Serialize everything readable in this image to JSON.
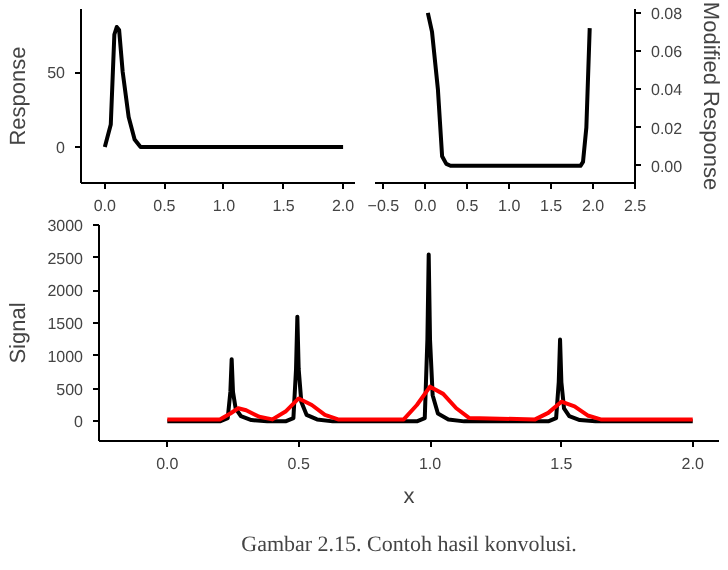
{
  "chart_data": [
    {
      "type": "line",
      "ylabel": "Response",
      "xlim": [
        -0.2,
        2.1
      ],
      "ylim": [
        -24,
        92
      ],
      "xticks": [
        {
          "value": 0,
          "label": "0.0"
        },
        0.5,
        {
          "value": 1,
          "label": "1.0"
        },
        1.5,
        {
          "value": 2,
          "label": "2.0"
        }
      ],
      "yticks": [
        0,
        50
      ],
      "series": [
        {
          "color": "#000000",
          "x": [
            0,
            0.05,
            0.08,
            0.1,
            0.12,
            0.15,
            0.2,
            0.25,
            0.3,
            2.0
          ],
          "values": [
            0,
            15,
            75,
            80,
            78,
            50,
            20,
            5,
            0,
            0
          ]
        }
      ]
    },
    {
      "type": "line",
      "y2label": "Modified Response",
      "xlim": [
        -0.6,
        2.5
      ],
      "y2lim": [
        -0.009,
        0.082
      ],
      "xticks": [
        -0.5,
        {
          "value": 0,
          "label": "0.0"
        },
        0.5,
        {
          "value": 1,
          "label": "1.0"
        },
        1.5,
        {
          "value": 2,
          "label": "2.0"
        },
        2.5
      ],
      "y2ticks": [
        {
          "value": 0,
          "label": "0.00"
        },
        0.02,
        0.04,
        0.06,
        0.08
      ],
      "series": [
        {
          "color": "#000000",
          "axis": "y2",
          "x": [
            0.03,
            0.08,
            0.15,
            0.2,
            0.25,
            0.3,
            1.85,
            1.88,
            1.92,
            1.96
          ],
          "values": [
            0.08,
            0.07,
            0.04,
            0.005,
            0.001,
            0,
            0,
            0.002,
            0.02,
            0.072
          ]
        }
      ]
    },
    {
      "type": "line",
      "xlabel": "x",
      "ylabel": "Signal",
      "xlim": [
        -0.26,
        2.1
      ],
      "ylim": [
        -300,
        3000
      ],
      "xticks": [
        {
          "value": 0,
          "label": "0.0"
        },
        0.5,
        {
          "value": 1,
          "label": "1.0"
        },
        1.5,
        {
          "value": 2,
          "label": "2.0"
        }
      ],
      "yticks": [
        0,
        500,
        1000,
        1500,
        2000,
        2500,
        3000
      ],
      "annotations": [
        "Gambar 2.15. Contoh hasil konvolusi."
      ],
      "series": [
        {
          "color": "#000000",
          "x": [
            0,
            0.2,
            0.23,
            0.24,
            0.245,
            0.25,
            0.26,
            0.28,
            0.32,
            0.38,
            0.45,
            0.48,
            0.49,
            0.495,
            0.5,
            0.51,
            0.53,
            0.57,
            0.63,
            0.7,
            0.95,
            0.98,
            0.99,
            0.995,
            1.0,
            1.01,
            1.03,
            1.07,
            1.13,
            1.2,
            1.45,
            1.48,
            1.49,
            1.495,
            1.5,
            1.51,
            1.53,
            1.57,
            1.63,
            1.7,
            2.0
          ],
          "values": [
            0,
            0,
            50,
            450,
            950,
            450,
            200,
            80,
            20,
            0,
            0,
            50,
            800,
            1600,
            800,
            300,
            100,
            30,
            0,
            0,
            0,
            50,
            1250,
            2550,
            1250,
            400,
            120,
            30,
            0,
            0,
            0,
            50,
            600,
            1250,
            600,
            200,
            80,
            20,
            0,
            0,
            0
          ]
        },
        {
          "color": "#ff0000",
          "x": [
            0,
            0.2,
            0.24,
            0.27,
            0.3,
            0.35,
            0.4,
            0.45,
            0.5,
            0.55,
            0.6,
            0.65,
            0.9,
            0.95,
            1.0,
            1.05,
            1.1,
            1.15,
            1.4,
            1.45,
            1.5,
            1.55,
            1.6,
            1.65,
            2.0
          ],
          "values": [
            30,
            30,
            120,
            200,
            170,
            70,
            30,
            150,
            350,
            250,
            100,
            30,
            30,
            250,
            530,
            420,
            200,
            50,
            30,
            130,
            300,
            230,
            90,
            30,
            30
          ]
        }
      ]
    }
  ]
}
